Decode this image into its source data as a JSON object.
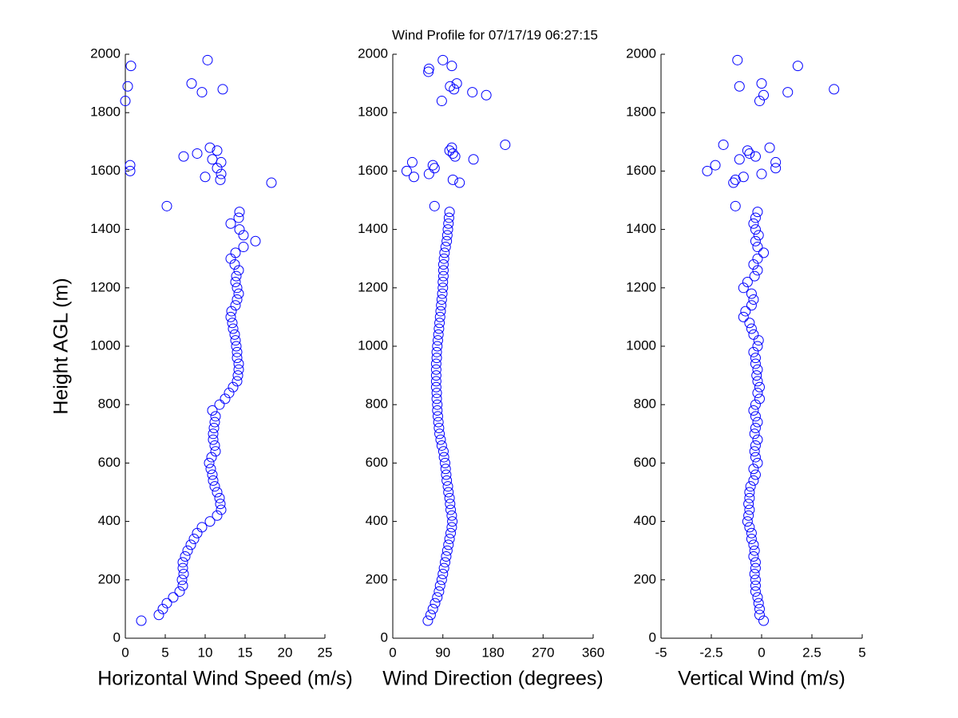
{
  "title": "Wind Profile for  07/17/19 06:27:15",
  "chart_data": [
    {
      "type": "scatter",
      "xlabel": "Horizontal Wind Speed (m/s)",
      "ylabel": "Height AGL (m)",
      "xlim": [
        0,
        25
      ],
      "xticks": [
        0,
        5,
        10,
        15,
        20,
        25
      ],
      "ylim": [
        0,
        2000
      ],
      "yticks": [
        0,
        200,
        400,
        600,
        800,
        1000,
        1200,
        1400,
        1600,
        1800,
        2000
      ],
      "series": [
        {
          "color": "#0000ff",
          "x": [
            2,
            4.2,
            4.7,
            5.2,
            6,
            6.8,
            7.2,
            7.1,
            7.3,
            7.2,
            7.2,
            7.5,
            7.8,
            8.2,
            8.6,
            9,
            9.6,
            10.6,
            11.5,
            12,
            11.9,
            11.8,
            11.5,
            11.2,
            11,
            10.9,
            10.7,
            10.5,
            10.8,
            11.3,
            11.2,
            11,
            11,
            11.1,
            11.2,
            11.3,
            10.9,
            11.8,
            12.5,
            13,
            13.5,
            14,
            14.1,
            14.2,
            14.2,
            14,
            14,
            13.9,
            13.8,
            13.7,
            13.5,
            13.4,
            13.2,
            13.3,
            13.8,
            14,
            14.2,
            14,
            13.8,
            13.9,
            14.2,
            13.7,
            13.2,
            13.8,
            14.8,
            16.3,
            14.8,
            14.3,
            13.2,
            14.2,
            14.3,
            5.2,
            18.3,
            11.9,
            10,
            12,
            0.6,
            11.5,
            0.6,
            12,
            10.9,
            7.3,
            9,
            11.5,
            10.6,
            0,
            9.6,
            12.2,
            0.3,
            8.3,
            0.7,
            10.3
          ],
          "values": [
            60,
            80,
            100,
            120,
            140,
            160,
            180,
            200,
            220,
            240,
            260,
            280,
            300,
            320,
            340,
            360,
            380,
            400,
            420,
            440,
            460,
            480,
            500,
            520,
            540,
            560,
            580,
            600,
            620,
            640,
            660,
            680,
            700,
            720,
            740,
            760,
            780,
            800,
            820,
            840,
            860,
            880,
            900,
            920,
            940,
            960,
            980,
            1000,
            1020,
            1040,
            1060,
            1080,
            1100,
            1120,
            1140,
            1160,
            1180,
            1200,
            1220,
            1240,
            1260,
            1280,
            1300,
            1320,
            1340,
            1360,
            1380,
            1400,
            1420,
            1440,
            1460,
            1480,
            1560,
            1570,
            1580,
            1590,
            1600,
            1610,
            1620,
            1630,
            1640,
            1650,
            1660,
            1670,
            1680,
            1840,
            1870,
            1880,
            1890,
            1900,
            1960,
            1980
          ]
        }
      ]
    },
    {
      "type": "scatter",
      "xlabel": "Wind Direction (degrees)",
      "xlim": [
        0,
        360
      ],
      "xticks": [
        0,
        90,
        180,
        270,
        360
      ],
      "ylim": [
        0,
        2000
      ],
      "yticks": [
        0,
        200,
        400,
        600,
        800,
        1000,
        1200,
        1400,
        1600,
        1800,
        2000
      ],
      "series": [
        {
          "color": "#0000ff",
          "x": [
            63,
            68,
            72,
            76,
            80,
            83,
            85,
            88,
            90,
            92,
            94,
            96,
            98,
            100,
            102,
            104,
            106,
            107,
            106,
            104,
            103,
            102,
            100,
            99,
            97,
            96,
            95,
            94,
            92,
            91,
            88,
            86,
            84,
            83,
            82,
            81,
            80,
            80,
            79,
            79,
            78,
            78,
            78,
            78,
            78,
            79,
            79,
            80,
            81,
            82,
            83,
            84,
            85,
            86,
            87,
            88,
            89,
            90,
            90,
            91,
            91,
            91,
            92,
            93,
            95,
            97,
            98,
            99,
            100,
            101,
            102,
            75,
            120,
            108,
            38,
            65,
            25,
            75,
            72,
            35,
            145,
            112,
            108,
            102,
            106,
            202,
            88,
            168,
            143,
            110,
            103,
            115,
            64,
            65,
            106,
            90
          ],
          "values": [
            60,
            80,
            100,
            120,
            140,
            160,
            180,
            200,
            220,
            240,
            260,
            280,
            300,
            320,
            340,
            360,
            380,
            400,
            420,
            440,
            460,
            480,
            500,
            520,
            540,
            560,
            580,
            600,
            620,
            640,
            660,
            680,
            700,
            720,
            740,
            760,
            780,
            800,
            820,
            840,
            860,
            880,
            900,
            920,
            940,
            960,
            980,
            1000,
            1020,
            1040,
            1060,
            1080,
            1100,
            1120,
            1140,
            1160,
            1180,
            1200,
            1220,
            1240,
            1260,
            1280,
            1300,
            1320,
            1340,
            1360,
            1380,
            1400,
            1420,
            1440,
            1460,
            1480,
            1560,
            1570,
            1580,
            1590,
            1600,
            1610,
            1620,
            1630,
            1640,
            1650,
            1660,
            1670,
            1680,
            1690,
            1840,
            1860,
            1870,
            1880,
            1890,
            1900,
            1940,
            1950,
            1960,
            1980
          ]
        }
      ]
    },
    {
      "type": "scatter",
      "xlabel": "Vertical Wind (m/s)",
      "xlim": [
        -5,
        5
      ],
      "xticks": [
        -5,
        -2.5,
        0,
        2.5,
        5
      ],
      "ylim": [
        0,
        2000
      ],
      "yticks": [
        0,
        200,
        400,
        600,
        800,
        1000,
        1200,
        1400,
        1600,
        1800,
        2000
      ],
      "series": [
        {
          "color": "#0000ff",
          "x": [
            0.1,
            -0.1,
            -0.1,
            -0.15,
            -0.2,
            -0.3,
            -0.3,
            -0.3,
            -0.35,
            -0.3,
            -0.3,
            -0.4,
            -0.35,
            -0.4,
            -0.5,
            -0.5,
            -0.6,
            -0.7,
            -0.65,
            -0.6,
            -0.65,
            -0.6,
            -0.6,
            -0.55,
            -0.4,
            -0.3,
            -0.4,
            -0.2,
            -0.3,
            -0.35,
            -0.3,
            -0.2,
            -0.35,
            -0.3,
            -0.2,
            -0.3,
            -0.4,
            -0.3,
            -0.1,
            -0.2,
            -0.1,
            -0.2,
            -0.25,
            -0.2,
            -0.3,
            -0.3,
            -0.4,
            -0.2,
            -0.15,
            -0.4,
            -0.5,
            -0.6,
            -0.9,
            -0.8,
            -0.5,
            -0.4,
            -0.5,
            -0.9,
            -0.7,
            -0.35,
            -0.2,
            -0.4,
            -0.2,
            0.1,
            -0.2,
            -0.3,
            -0.15,
            -0.3,
            -0.4,
            -0.3,
            -0.2,
            -1.3,
            -1.4,
            -1.3,
            -0.9,
            0,
            -2.7,
            0.7,
            -2.3,
            0.7,
            -1.1,
            -0.3,
            -0.6,
            -0.7,
            0.4,
            -1.9,
            -0.1,
            0.1,
            1.3,
            3.6,
            -1.1,
            0,
            1.8,
            -1.2
          ],
          "values": [
            60,
            80,
            100,
            120,
            140,
            160,
            180,
            200,
            220,
            240,
            260,
            280,
            300,
            320,
            340,
            360,
            380,
            400,
            420,
            440,
            460,
            480,
            500,
            520,
            540,
            560,
            580,
            600,
            620,
            640,
            660,
            680,
            700,
            720,
            740,
            760,
            780,
            800,
            820,
            840,
            860,
            880,
            900,
            920,
            940,
            960,
            980,
            1000,
            1020,
            1040,
            1060,
            1080,
            1100,
            1120,
            1140,
            1160,
            1180,
            1200,
            1220,
            1240,
            1260,
            1280,
            1300,
            1320,
            1340,
            1360,
            1380,
            1400,
            1420,
            1440,
            1460,
            1480,
            1560,
            1570,
            1580,
            1590,
            1600,
            1610,
            1620,
            1630,
            1640,
            1650,
            1660,
            1670,
            1680,
            1690,
            1840,
            1860,
            1870,
            1880,
            1890,
            1900,
            1960,
            1980
          ]
        }
      ]
    }
  ]
}
